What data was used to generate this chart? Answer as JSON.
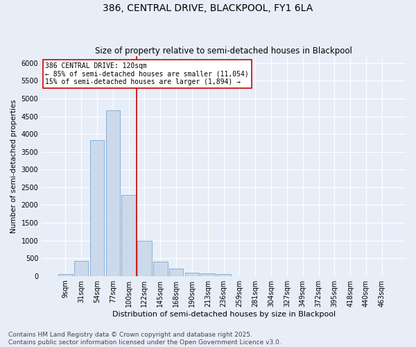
{
  "title1": "386, CENTRAL DRIVE, BLACKPOOL, FY1 6LA",
  "title2": "Size of property relative to semi-detached houses in Blackpool",
  "xlabel": "Distribution of semi-detached houses by size in Blackpool",
  "ylabel": "Number of semi-detached properties",
  "categories": [
    "9sqm",
    "31sqm",
    "54sqm",
    "77sqm",
    "100sqm",
    "122sqm",
    "145sqm",
    "168sqm",
    "190sqm",
    "213sqm",
    "236sqm",
    "259sqm",
    "281sqm",
    "304sqm",
    "327sqm",
    "349sqm",
    "372sqm",
    "395sqm",
    "418sqm",
    "440sqm",
    "463sqm"
  ],
  "values": [
    50,
    430,
    3820,
    4660,
    2290,
    990,
    410,
    200,
    90,
    80,
    60,
    0,
    0,
    0,
    0,
    0,
    0,
    0,
    0,
    0,
    0
  ],
  "bar_color": "#ccd9ea",
  "bar_edgecolor": "#6699cc",
  "vline_index": 4.5,
  "property_line_label": "386 CENTRAL DRIVE: 120sqm",
  "annotation_smaller": "← 85% of semi-detached houses are smaller (11,054)",
  "annotation_larger": "15% of semi-detached houses are larger (1,894) →",
  "annotation_box_facecolor": "#ffffff",
  "annotation_box_edgecolor": "#cc0000",
  "vline_color": "#cc0000",
  "ylim": [
    0,
    6200
  ],
  "yticks": [
    0,
    500,
    1000,
    1500,
    2000,
    2500,
    3000,
    3500,
    4000,
    4500,
    5000,
    5500,
    6000
  ],
  "bg_color": "#e8eef8",
  "grid_color": "#ffffff",
  "footnote1": "Contains HM Land Registry data © Crown copyright and database right 2025.",
  "footnote2": "Contains public sector information licensed under the Open Government Licence v3.0.",
  "title1_fontsize": 10,
  "title2_fontsize": 8.5,
  "xlabel_fontsize": 8,
  "ylabel_fontsize": 7.5,
  "tick_fontsize": 7,
  "annotation_fontsize": 7,
  "footnote_fontsize": 6.5
}
